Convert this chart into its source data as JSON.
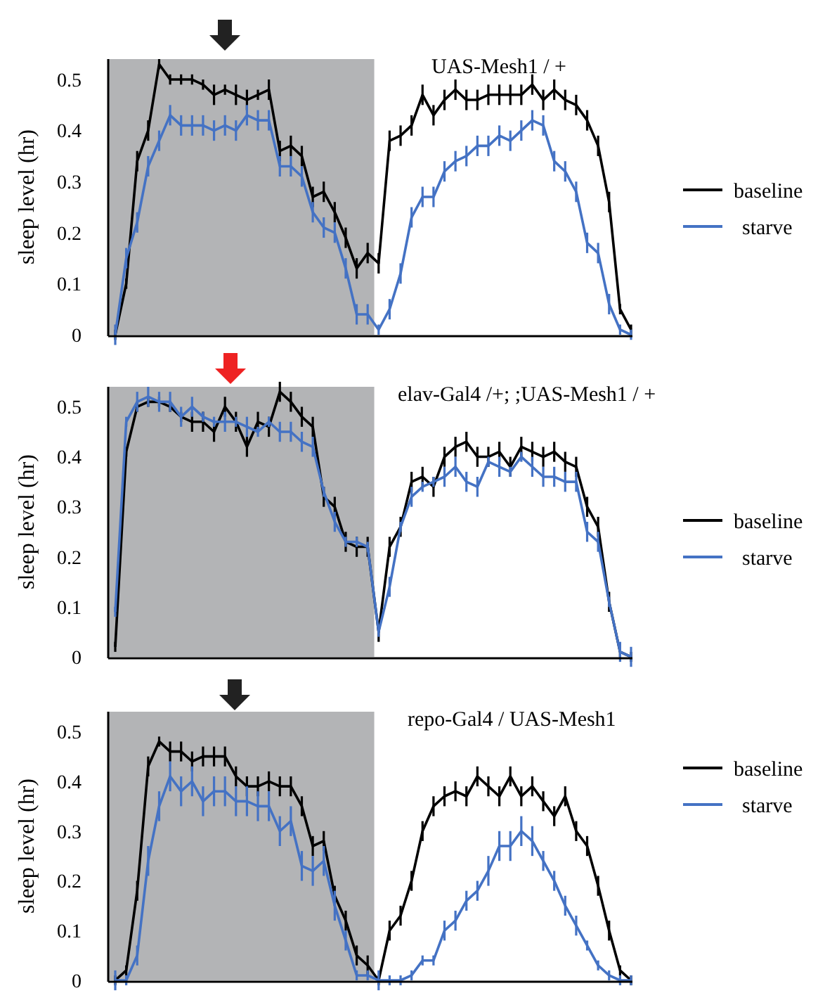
{
  "chart_data": [
    {
      "type": "line",
      "title": "UAS-Mesh1 / +",
      "ylabel": "sleep level  (hr)",
      "categories": [
        null,
        null,
        null,
        null,
        null,
        null,
        null,
        null,
        null,
        null,
        null,
        null,
        null,
        null,
        null,
        null,
        null,
        null,
        null,
        null,
        null,
        null,
        null,
        null,
        null,
        null,
        null,
        null,
        null,
        null,
        null,
        null,
        null,
        null,
        null,
        null,
        null,
        null,
        null,
        null,
        null,
        null,
        null,
        null,
        null,
        null,
        null,
        null
      ],
      "ylim": [
        0,
        0.54
      ],
      "yticks": [
        0,
        0.1,
        0.2,
        0.3,
        0.4,
        0.5
      ],
      "tick_labels": "y",
      "grid": false,
      "legend": "right",
      "marker": "none",
      "line_style": "solid",
      "series": [
        {
          "name": "baseline",
          "color": "#000000",
          "values": [
            0,
            0.1,
            0.34,
            0.4,
            0.53,
            0.5,
            0.5,
            0.5,
            0.49,
            0.47,
            0.48,
            0.47,
            0.46,
            0.47,
            0.48,
            0.36,
            0.37,
            0.35,
            0.27,
            0.28,
            0.24,
            0.19,
            0.13,
            0.16,
            0.14,
            0.38,
            0.39,
            0.41,
            0.47,
            0.43,
            0.46,
            0.48,
            0.46,
            0.46,
            0.47,
            0.47,
            0.47,
            0.47,
            0.49,
            0.46,
            0.48,
            0.46,
            0.45,
            0.42,
            0.37,
            0.26,
            0.05,
            0.01
          ],
          "errors": [
            0.01,
            0.01,
            0.02,
            0.02,
            0.01,
            0.01,
            0.01,
            0.01,
            0.01,
            0.02,
            0.01,
            0.02,
            0.02,
            0.01,
            0.02,
            0.02,
            0.02,
            0.02,
            0.02,
            0.02,
            0.02,
            0.02,
            0.02,
            0.02,
            0.02,
            0.02,
            0.02,
            0.02,
            0.02,
            0.02,
            0.02,
            0.02,
            0.02,
            0.02,
            0.02,
            0.02,
            0.02,
            0.02,
            0.02,
            0.02,
            0.02,
            0.02,
            0.02,
            0.02,
            0.02,
            0.02,
            0.01,
            0.01
          ]
        },
        {
          "name": "starve",
          "color": "#4472c4",
          "values": [
            0,
            0.15,
            0.22,
            0.33,
            0.38,
            0.43,
            0.41,
            0.41,
            0.41,
            0.4,
            0.41,
            0.4,
            0.43,
            0.42,
            0.42,
            0.33,
            0.33,
            0.31,
            0.24,
            0.21,
            0.2,
            0.13,
            0.04,
            0.04,
            0.01,
            0.05,
            0.12,
            0.23,
            0.27,
            0.27,
            0.32,
            0.34,
            0.35,
            0.37,
            0.37,
            0.39,
            0.38,
            0.4,
            0.42,
            0.41,
            0.34,
            0.32,
            0.28,
            0.18,
            0.16,
            0.06,
            0.01,
            0
          ],
          "errors": [
            0.02,
            0.02,
            0.02,
            0.02,
            0.02,
            0.02,
            0.02,
            0.02,
            0.02,
            0.02,
            0.02,
            0.02,
            0.02,
            0.02,
            0.02,
            0.02,
            0.02,
            0.02,
            0.02,
            0.02,
            0.02,
            0.02,
            0.02,
            0.02,
            0.01,
            0.02,
            0.02,
            0.02,
            0.02,
            0.02,
            0.02,
            0.02,
            0.02,
            0.02,
            0.02,
            0.02,
            0.02,
            0.02,
            0.02,
            0.02,
            0.02,
            0.02,
            0.02,
            0.02,
            0.02,
            0.02,
            0.01,
            0.01
          ]
        }
      ]
    },
    {
      "type": "line",
      "title": "elav-Gal4 /+; ;UAS-Mesh1 / +",
      "ylabel": "sleep level  (hr)",
      "categories": [
        null,
        null,
        null,
        null,
        null,
        null,
        null,
        null,
        null,
        null,
        null,
        null,
        null,
        null,
        null,
        null,
        null,
        null,
        null,
        null,
        null,
        null,
        null,
        null,
        null,
        null,
        null,
        null,
        null,
        null,
        null,
        null,
        null,
        null,
        null,
        null,
        null,
        null,
        null,
        null,
        null,
        null,
        null,
        null,
        null,
        null,
        null,
        null
      ],
      "ylim": [
        0,
        0.54
      ],
      "yticks": [
        0,
        0.1,
        0.2,
        0.3,
        0.4,
        0.5
      ],
      "tick_labels": "y",
      "grid": false,
      "legend": "right",
      "marker": "none",
      "line_style": "solid",
      "series": [
        {
          "name": "baseline",
          "color": "#000000",
          "values": [
            0.02,
            0.41,
            0.5,
            0.51,
            0.51,
            0.5,
            0.48,
            0.47,
            0.47,
            0.45,
            0.5,
            0.47,
            0.42,
            0.47,
            0.46,
            0.53,
            0.51,
            0.48,
            0.46,
            0.32,
            0.3,
            0.23,
            0.22,
            0.22,
            0.05,
            0.22,
            0.26,
            0.35,
            0.36,
            0.34,
            0.4,
            0.42,
            0.43,
            0.4,
            0.4,
            0.41,
            0.38,
            0.42,
            0.41,
            0.4,
            0.41,
            0.39,
            0.38,
            0.3,
            0.26,
            0.11,
            0.01,
            0
          ],
          "errors": [
            0.01,
            0.01,
            0.01,
            0.01,
            0.01,
            0.01,
            0.01,
            0.02,
            0.02,
            0.02,
            0.02,
            0.02,
            0.02,
            0.02,
            0.02,
            0.02,
            0.02,
            0.02,
            0.02,
            0.02,
            0.02,
            0.02,
            0.02,
            0.02,
            0.02,
            0.02,
            0.02,
            0.02,
            0.02,
            0.02,
            0.02,
            0.02,
            0.02,
            0.02,
            0.02,
            0.02,
            0.02,
            0.02,
            0.02,
            0.02,
            0.02,
            0.02,
            0.02,
            0.02,
            0.02,
            0.02,
            0.01,
            0.01
          ]
        },
        {
          "name": "starve",
          "color": "#4472c4",
          "values": [
            0.09,
            0.47,
            0.51,
            0.52,
            0.51,
            0.51,
            0.48,
            0.5,
            0.48,
            0.47,
            0.47,
            0.47,
            0.46,
            0.45,
            0.47,
            0.45,
            0.45,
            0.43,
            0.42,
            0.33,
            0.27,
            0.23,
            0.23,
            0.22,
            0.05,
            0.14,
            0.26,
            0.32,
            0.34,
            0.35,
            0.36,
            0.38,
            0.35,
            0.34,
            0.39,
            0.38,
            0.37,
            0.4,
            0.38,
            0.36,
            0.36,
            0.35,
            0.35,
            0.25,
            0.23,
            0.11,
            0.01,
            0
          ],
          "errors": [
            0.01,
            0.01,
            0.02,
            0.02,
            0.02,
            0.02,
            0.02,
            0.02,
            0.01,
            0.01,
            0.02,
            0.01,
            0.02,
            0.01,
            0.01,
            0.02,
            0.02,
            0.02,
            0.02,
            0.01,
            0.02,
            0.01,
            0.01,
            0.01,
            0.01,
            0.02,
            0.01,
            0.02,
            0.01,
            0.01,
            0.02,
            0.02,
            0.02,
            0.02,
            0.01,
            0.02,
            0.01,
            0.01,
            0.02,
            0.02,
            0.02,
            0.02,
            0.02,
            0.02,
            0.02,
            0.01,
            0.02,
            0.02
          ]
        }
      ]
    },
    {
      "type": "line",
      "title": "repo-Gal4 / UAS-Mesh1",
      "ylabel": "sleep level  (hr)",
      "categories": [
        null,
        null,
        null,
        null,
        null,
        null,
        null,
        null,
        null,
        null,
        null,
        null,
        null,
        null,
        null,
        null,
        null,
        null,
        null,
        null,
        null,
        null,
        null,
        null,
        null,
        null,
        null,
        null,
        null,
        null,
        null,
        null,
        null,
        null,
        null,
        null,
        null,
        null,
        null,
        null,
        null,
        null,
        null,
        null,
        null,
        null,
        null,
        null
      ],
      "ylim": [
        0,
        0.54
      ],
      "yticks": [
        0,
        0.1,
        0.2,
        0.3,
        0.4,
        0.5
      ],
      "tick_labels": "y",
      "grid": false,
      "legend": "right",
      "marker": "none",
      "line_style": "solid",
      "series": [
        {
          "name": "baseline",
          "color": "#000000",
          "values": [
            0,
            0.02,
            0.18,
            0.43,
            0.48,
            0.46,
            0.46,
            0.44,
            0.45,
            0.45,
            0.45,
            0.41,
            0.39,
            0.39,
            0.4,
            0.39,
            0.39,
            0.35,
            0.27,
            0.28,
            0.17,
            0.12,
            0.05,
            0.03,
            0,
            0.1,
            0.13,
            0.2,
            0.3,
            0.35,
            0.37,
            0.38,
            0.37,
            0.41,
            0.39,
            0.37,
            0.41,
            0.37,
            0.39,
            0.36,
            0.33,
            0.37,
            0.3,
            0.27,
            0.19,
            0.1,
            0.02,
            0
          ],
          "errors": [
            0.01,
            0.01,
            0.02,
            0.02,
            0.01,
            0.02,
            0.02,
            0.02,
            0.02,
            0.02,
            0.02,
            0.02,
            0.02,
            0.02,
            0.02,
            0.02,
            0.02,
            0.02,
            0.02,
            0.02,
            0.02,
            0.02,
            0.02,
            0.02,
            0.01,
            0.02,
            0.02,
            0.02,
            0.02,
            0.02,
            0.02,
            0.02,
            0.02,
            0.02,
            0.02,
            0.02,
            0.02,
            0.02,
            0.02,
            0.02,
            0.02,
            0.02,
            0.02,
            0.02,
            0.02,
            0.02,
            0.01,
            0.01
          ]
        },
        {
          "name": "starve",
          "color": "#4472c4",
          "values": [
            0,
            0,
            0.05,
            0.24,
            0.35,
            0.41,
            0.38,
            0.4,
            0.36,
            0.38,
            0.38,
            0.36,
            0.36,
            0.35,
            0.35,
            0.3,
            0.32,
            0.23,
            0.22,
            0.24,
            0.15,
            0.08,
            0.01,
            0.01,
            0,
            0,
            0,
            0.01,
            0.04,
            0.04,
            0.1,
            0.12,
            0.16,
            0.18,
            0.22,
            0.27,
            0.27,
            0.3,
            0.28,
            0.24,
            0.2,
            0.15,
            0.11,
            0.07,
            0.03,
            0.01,
            0,
            0
          ],
          "errors": [
            0.02,
            0.01,
            0.02,
            0.03,
            0.03,
            0.03,
            0.03,
            0.03,
            0.03,
            0.03,
            0.03,
            0.03,
            0.03,
            0.03,
            0.03,
            0.03,
            0.03,
            0.03,
            0.03,
            0.03,
            0.03,
            0.02,
            0.01,
            0.01,
            0.02,
            0.01,
            0.01,
            0.01,
            0.01,
            0.01,
            0.02,
            0.02,
            0.02,
            0.02,
            0.03,
            0.03,
            0.03,
            0.03,
            0.03,
            0.02,
            0.02,
            0.02,
            0.02,
            0.01,
            0.01,
            0.01,
            0.01,
            0.01
          ]
        }
      ]
    }
  ]
}
